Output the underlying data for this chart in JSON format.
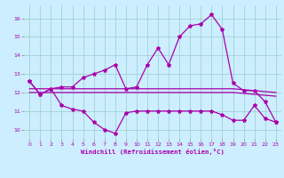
{
  "x": [
    0,
    1,
    2,
    3,
    4,
    5,
    6,
    7,
    8,
    9,
    10,
    11,
    12,
    13,
    14,
    15,
    16,
    17,
    18,
    19,
    20,
    21,
    22,
    23
  ],
  "line_upper": [
    12.6,
    11.9,
    12.2,
    12.3,
    12.3,
    12.8,
    13.0,
    13.2,
    13.5,
    12.2,
    12.3,
    13.5,
    14.4,
    13.5,
    15.0,
    15.6,
    15.7,
    16.2,
    15.4,
    12.5,
    12.1,
    12.1,
    11.5,
    10.4
  ],
  "line_lower": [
    12.6,
    11.9,
    12.2,
    11.3,
    11.1,
    11.0,
    10.4,
    10.0,
    9.8,
    10.9,
    11.0,
    11.0,
    11.0,
    11.0,
    11.0,
    11.0,
    11.0,
    11.0,
    10.8,
    10.5,
    10.5,
    11.3,
    10.6,
    10.4
  ],
  "line_flat1": [
    12.2,
    12.2,
    12.2,
    12.2,
    12.2,
    12.2,
    12.2,
    12.2,
    12.2,
    12.2,
    12.2,
    12.2,
    12.2,
    12.2,
    12.2,
    12.2,
    12.2,
    12.2,
    12.2,
    12.2,
    12.15,
    12.1,
    12.05,
    12.0
  ],
  "line_flat2": [
    12.0,
    12.0,
    12.0,
    12.0,
    12.0,
    12.0,
    12.0,
    12.0,
    12.0,
    12.0,
    12.0,
    12.0,
    12.0,
    12.0,
    12.0,
    12.0,
    12.0,
    12.0,
    12.0,
    12.0,
    11.95,
    11.9,
    11.85,
    11.8
  ],
  "bg_color": "#cceeff",
  "line_color": "#aa00aa",
  "grid_color": "#99cccc",
  "xlabel": "Windchill (Refroidissement éolien,°C)",
  "xlim_min": -0.5,
  "xlim_max": 23.5,
  "ylim_min": 9.5,
  "ylim_max": 16.7,
  "yticks": [
    10,
    11,
    12,
    13,
    14,
    15,
    16
  ],
  "xticks": [
    0,
    1,
    2,
    3,
    4,
    5,
    6,
    7,
    8,
    9,
    10,
    11,
    12,
    13,
    14,
    15,
    16,
    17,
    18,
    19,
    20,
    21,
    22,
    23
  ]
}
